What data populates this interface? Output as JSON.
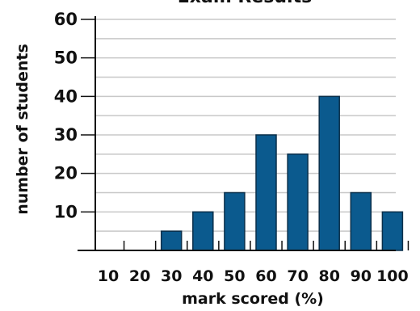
{
  "chart_data": {
    "type": "bar",
    "title": "Exam Results",
    "xlabel": "mark scored (%)",
    "ylabel": "number of students",
    "categories": [
      "10",
      "20",
      "30",
      "40",
      "50",
      "60",
      "70",
      "80",
      "90",
      "100"
    ],
    "values": [
      0,
      0,
      5,
      10,
      15,
      30,
      25,
      40,
      15,
      10
    ],
    "ylim": [
      0,
      60
    ],
    "yticks": [
      "10",
      "20",
      "30",
      "40",
      "50",
      "60"
    ],
    "grid": true,
    "bar_color": "#0b5a8e"
  }
}
